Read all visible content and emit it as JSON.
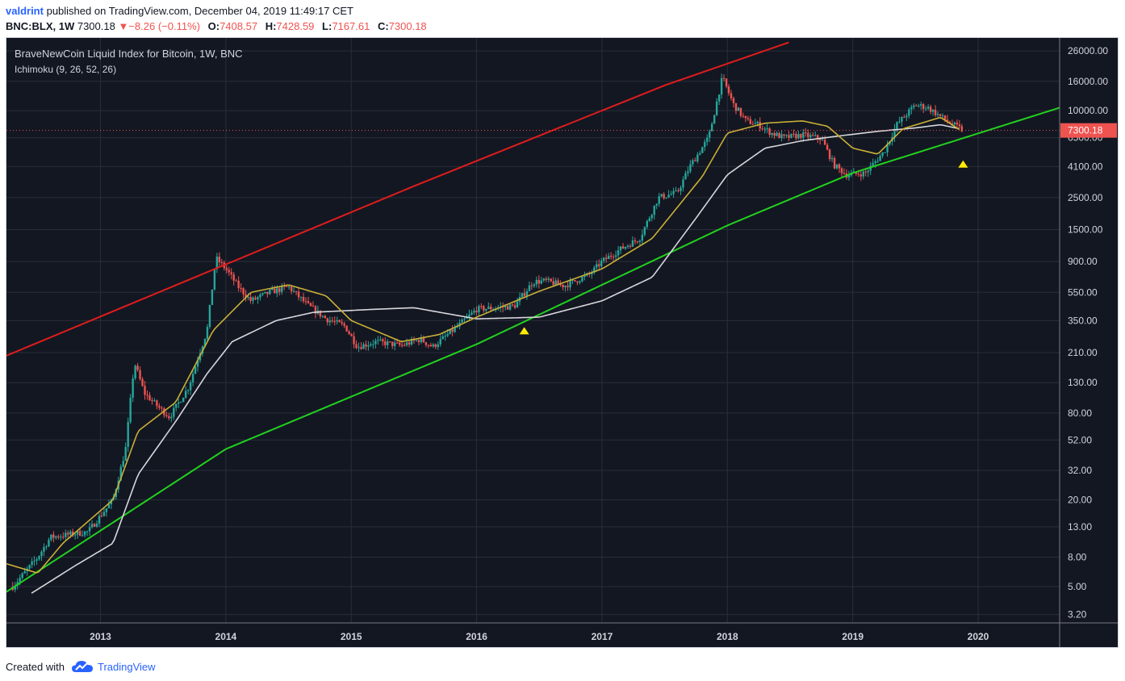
{
  "header": {
    "author": "valdrint",
    "published_text": "published on TradingView.com, December 04, 2019 11:49:17 CET"
  },
  "ohlc_bar": {
    "symbol": "BNC:BLX, 1W",
    "last": "7300.18",
    "change": "−8.26 (−0.11%)",
    "o_label": "O:",
    "o": "7408.57",
    "h_label": "H:",
    "h": "7428.59",
    "l_label": "L:",
    "l": "7167.61",
    "c_label": "C:",
    "c": "7300.18"
  },
  "chart": {
    "title": "BraveNewCoin Liquid Index for Bitcoin, 1W, BNC",
    "indicator": "Ichimoku (9, 26, 52, 26)",
    "price_label": "7300.18"
  },
  "footer": {
    "created_with": "Created with",
    "brand": "TradingView"
  },
  "colors": {
    "background": "#131722",
    "grid": "#2a2e39",
    "up": "#26a69a",
    "down": "#ef5350",
    "tenkan": "#c9b037",
    "kijun": "#d7d7db",
    "red_line": "#e01c1c",
    "green_line": "#22d11f",
    "marker": "#ffeb00"
  },
  "chart_data": {
    "type": "candlestick",
    "scale": "log",
    "y_ticks": [
      "26000.00",
      "16000.00",
      "10000.00",
      "6500.00",
      "4100.00",
      "2500.00",
      "1500.00",
      "900.00",
      "550.00",
      "350.00",
      "210.00",
      "130.00",
      "80.00",
      "52.00",
      "32.00",
      "20.00",
      "13.00",
      "8.00",
      "5.00",
      "3.20"
    ],
    "x_ticks": [
      "2013",
      "2014",
      "2015",
      "2016",
      "2017",
      "2018",
      "2019",
      "2020"
    ],
    "last_price": 7300.18,
    "price_path": [
      [
        2012.3,
        5
      ],
      [
        2012.5,
        8
      ],
      [
        2012.6,
        11
      ],
      [
        2012.9,
        12
      ],
      [
        2013.1,
        20
      ],
      [
        2013.2,
        45
      ],
      [
        2013.27,
        180
      ],
      [
        2013.35,
        110
      ],
      [
        2013.45,
        90
      ],
      [
        2013.55,
        75
      ],
      [
        2013.7,
        120
      ],
      [
        2013.85,
        300
      ],
      [
        2013.92,
        950
      ],
      [
        2014.0,
        800
      ],
      [
        2014.1,
        600
      ],
      [
        2014.2,
        480
      ],
      [
        2014.35,
        550
      ],
      [
        2014.5,
        600
      ],
      [
        2014.65,
        450
      ],
      [
        2014.8,
        360
      ],
      [
        2014.95,
        320
      ],
      [
        2015.05,
        230
      ],
      [
        2015.2,
        250
      ],
      [
        2015.4,
        235
      ],
      [
        2015.55,
        260
      ],
      [
        2015.65,
        230
      ],
      [
        2015.85,
        320
      ],
      [
        2016.0,
        420
      ],
      [
        2016.3,
        440
      ],
      [
        2016.45,
        650
      ],
      [
        2016.55,
        660
      ],
      [
        2016.7,
        610
      ],
      [
        2016.9,
        730
      ],
      [
        2017.0,
        900
      ],
      [
        2017.15,
        1100
      ],
      [
        2017.3,
        1300
      ],
      [
        2017.45,
        2500
      ],
      [
        2017.6,
        2700
      ],
      [
        2017.7,
        4100
      ],
      [
        2017.85,
        6500
      ],
      [
        2017.96,
        17000
      ],
      [
        2018.05,
        11000
      ],
      [
        2018.15,
        8500
      ],
      [
        2018.25,
        8000
      ],
      [
        2018.35,
        7000
      ],
      [
        2018.45,
        6500
      ],
      [
        2018.6,
        6800
      ],
      [
        2018.75,
        6400
      ],
      [
        2018.85,
        4200
      ],
      [
        2018.95,
        3600
      ],
      [
        2019.1,
        3700
      ],
      [
        2019.25,
        5200
      ],
      [
        2019.35,
        8000
      ],
      [
        2019.5,
        11000
      ],
      [
        2019.6,
        10500
      ],
      [
        2019.75,
        8500
      ],
      [
        2019.88,
        7300
      ]
    ],
    "tenkan_path": [
      [
        2012.25,
        7.2
      ],
      [
        2012.5,
        6.2
      ],
      [
        2012.7,
        10
      ],
      [
        2013.1,
        20
      ],
      [
        2013.3,
        60
      ],
      [
        2013.6,
        95
      ],
      [
        2013.9,
        300
      ],
      [
        2014.2,
        550
      ],
      [
        2014.5,
        620
      ],
      [
        2014.8,
        520
      ],
      [
        2015.0,
        350
      ],
      [
        2015.4,
        250
      ],
      [
        2015.7,
        280
      ],
      [
        2016.0,
        370
      ],
      [
        2016.5,
        560
      ],
      [
        2017.0,
        800
      ],
      [
        2017.4,
        1300
      ],
      [
        2017.8,
        3500
      ],
      [
        2018.0,
        7000
      ],
      [
        2018.3,
        8200
      ],
      [
        2018.6,
        8500
      ],
      [
        2018.8,
        7800
      ],
      [
        2019.0,
        5500
      ],
      [
        2019.2,
        5000
      ],
      [
        2019.4,
        7500
      ],
      [
        2019.7,
        9000
      ],
      [
        2019.85,
        7400
      ]
    ],
    "kijun_path": [
      [
        2012.45,
        4.5
      ],
      [
        2012.8,
        7
      ],
      [
        2013.1,
        10
      ],
      [
        2013.3,
        30
      ],
      [
        2013.6,
        70
      ],
      [
        2013.85,
        150
      ],
      [
        2014.05,
        250
      ],
      [
        2014.4,
        350
      ],
      [
        2014.7,
        400
      ],
      [
        2015.2,
        420
      ],
      [
        2015.5,
        430
      ],
      [
        2016.0,
        360
      ],
      [
        2016.5,
        370
      ],
      [
        2017.0,
        480
      ],
      [
        2017.4,
        700
      ],
      [
        2017.75,
        1800
      ],
      [
        2018.0,
        3600
      ],
      [
        2018.3,
        5500
      ],
      [
        2018.6,
        6200
      ],
      [
        2018.9,
        6700
      ],
      [
        2019.2,
        7200
      ],
      [
        2019.5,
        7600
      ],
      [
        2019.7,
        8000
      ],
      [
        2019.85,
        7500
      ]
    ],
    "red_line": [
      [
        2012.25,
        200
      ],
      [
        2015.5,
        3000
      ],
      [
        2017.5,
        15000
      ],
      [
        2018.5,
        30000
      ]
    ],
    "green_line": [
      [
        2012.25,
        4.6
      ],
      [
        2014.0,
        45
      ],
      [
        2016.0,
        240
      ],
      [
        2018.0,
        1600
      ],
      [
        2019.0,
        3700
      ],
      [
        2020.65,
        10500
      ]
    ],
    "markers": [
      [
        2016.38,
        300
      ],
      [
        2019.88,
        4300
      ]
    ],
    "x_range": [
      2012.25,
      2020.65
    ],
    "y_range": [
      2.8,
      32000
    ]
  }
}
